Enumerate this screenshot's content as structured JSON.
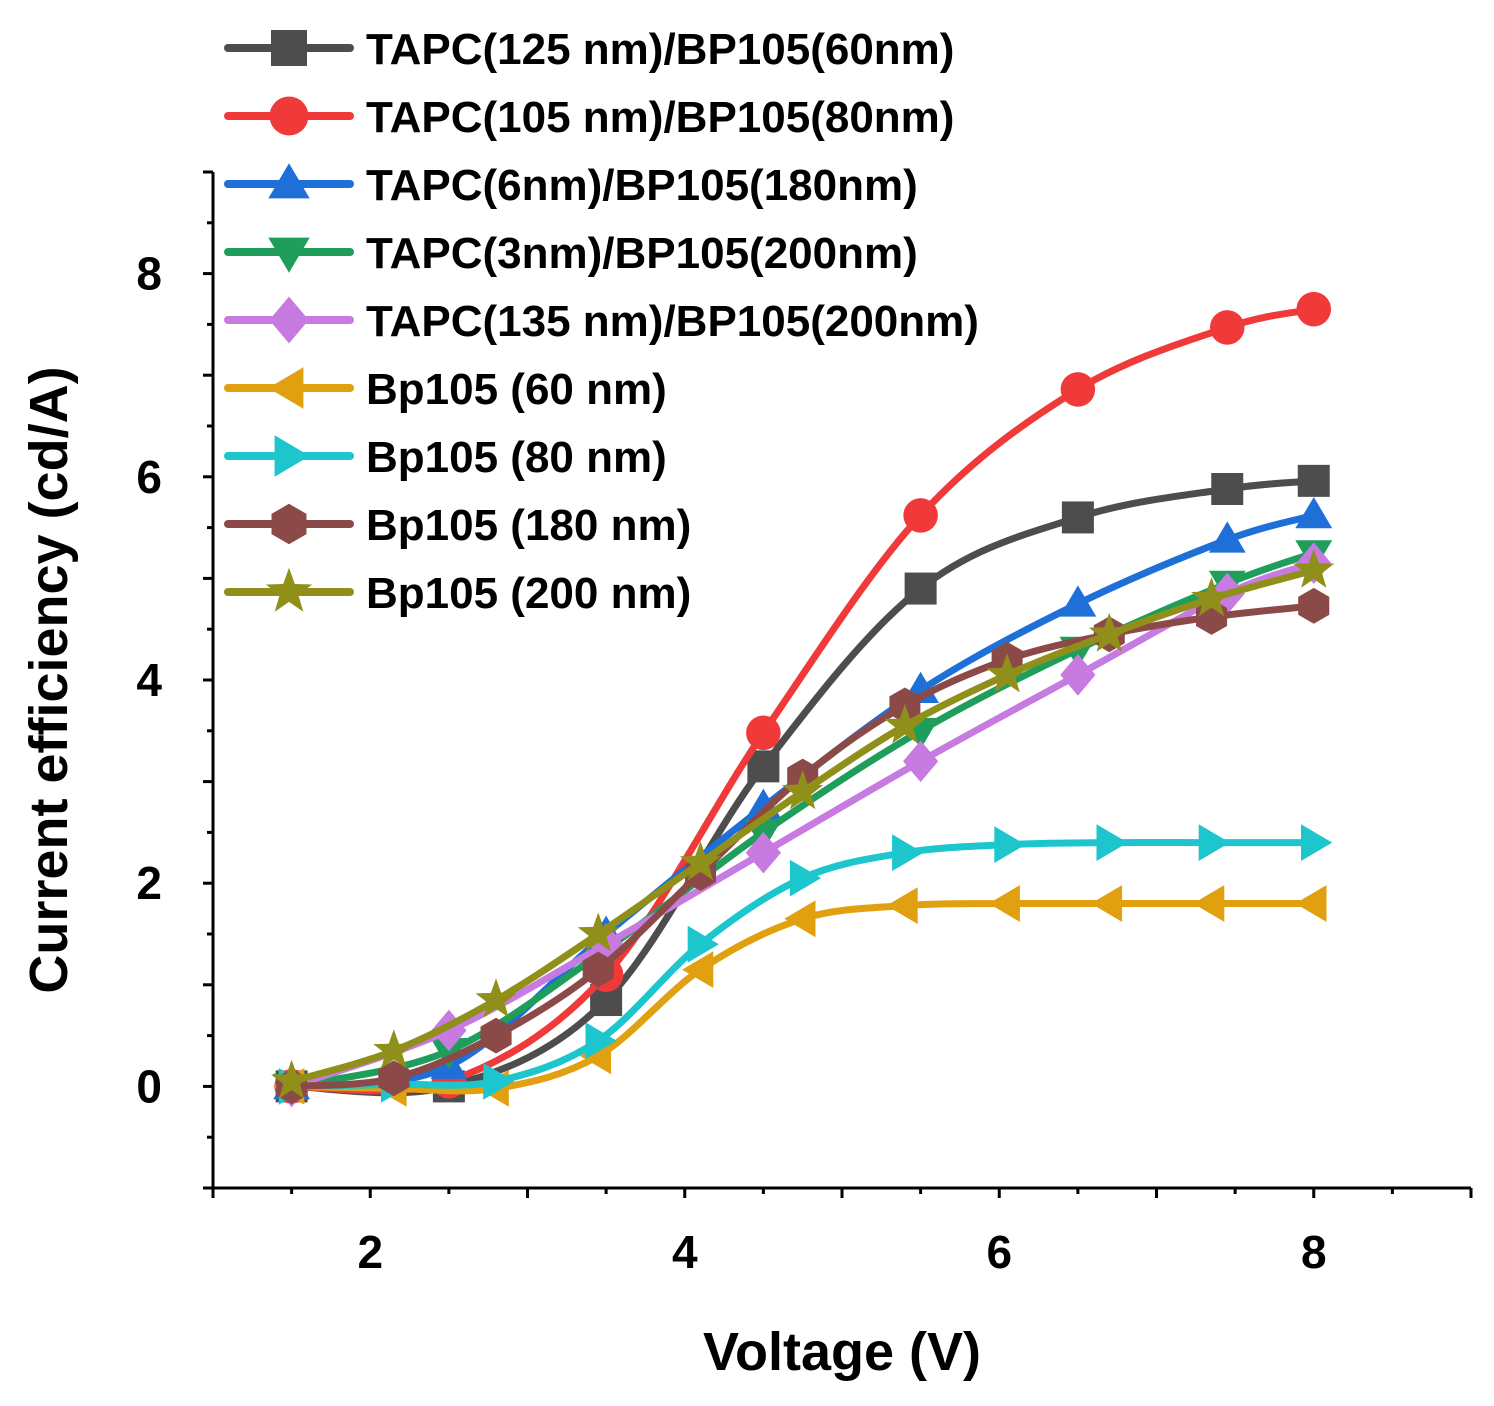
{
  "chart_data": {
    "type": "line",
    "title": "",
    "xlabel": "Voltage (V)",
    "ylabel": "Current efficiency (cd/A)",
    "xlim": [
      1,
      9
    ],
    "ylim": [
      -1,
      9
    ],
    "xticks": [
      2,
      4,
      6,
      8
    ],
    "yticks": [
      0,
      2,
      4,
      6,
      8
    ],
    "legend_position": "top-left",
    "series": [
      {
        "name": "TAPC(125 nm)/BP105(60nm)",
        "color": "#4d4d4d",
        "marker": "square",
        "x": [
          1.5,
          2.5,
          3.5,
          4.5,
          5.5,
          6.5,
          7.45,
          8.0
        ],
        "y": [
          0.0,
          0.0,
          0.85,
          3.15,
          4.9,
          5.6,
          5.88,
          5.96
        ]
      },
      {
        "name": "TAPC(105 nm)/BP105(80nm)",
        "color": "#f03a3a",
        "marker": "circle",
        "x": [
          1.5,
          2.5,
          3.5,
          4.5,
          5.5,
          6.5,
          7.45,
          8.0
        ],
        "y": [
          0.0,
          0.05,
          1.1,
          3.48,
          5.62,
          6.86,
          7.47,
          7.65
        ]
      },
      {
        "name": "TAPC(6nm)/BP105(180nm)",
        "color": "#1f6fd8",
        "marker": "triangle-up",
        "x": [
          1.5,
          2.5,
          3.5,
          4.5,
          5.5,
          6.5,
          7.45,
          8.0
        ],
        "y": [
          0.0,
          0.2,
          1.5,
          2.75,
          3.9,
          4.75,
          5.38,
          5.62
        ]
      },
      {
        "name": "TAPC(3nm)/BP105(200nm)",
        "color": "#1e9e5a",
        "marker": "triangle-down",
        "x": [
          1.5,
          2.5,
          3.5,
          4.5,
          5.5,
          6.5,
          7.45,
          8.0
        ],
        "y": [
          0.0,
          0.35,
          1.35,
          2.5,
          3.5,
          4.3,
          4.95,
          5.25
        ]
      },
      {
        "name": "TAPC(135 nm)/BP105(200nm)",
        "color": "#c77be0",
        "marker": "diamond",
        "x": [
          1.5,
          2.5,
          3.5,
          4.5,
          5.5,
          6.5,
          7.45,
          8.0
        ],
        "y": [
          0.0,
          0.55,
          1.4,
          2.3,
          3.2,
          4.05,
          4.85,
          5.15
        ]
      },
      {
        "name": "Bp105 (60 nm)",
        "color": "#e0a010",
        "marker": "triangle-left",
        "x": [
          1.5,
          2.15,
          2.8,
          3.45,
          4.1,
          4.75,
          5.4,
          6.05,
          6.7,
          7.35,
          8.0
        ],
        "y": [
          0.0,
          -0.02,
          -0.02,
          0.3,
          1.15,
          1.65,
          1.78,
          1.8,
          1.8,
          1.8,
          1.8
        ]
      },
      {
        "name": "Bp105 (80 nm)",
        "color": "#1cc6cc",
        "marker": "triangle-right",
        "x": [
          1.5,
          2.15,
          2.8,
          3.45,
          4.1,
          4.75,
          5.4,
          6.05,
          6.7,
          7.35,
          8.0
        ],
        "y": [
          0.0,
          0.02,
          0.05,
          0.45,
          1.4,
          2.05,
          2.3,
          2.38,
          2.4,
          2.4,
          2.4
        ]
      },
      {
        "name": "Bp105 (180 nm)",
        "color": "#8b4a48",
        "marker": "hexagon",
        "x": [
          1.5,
          2.15,
          2.8,
          3.45,
          4.1,
          4.75,
          5.4,
          6.05,
          6.7,
          7.35,
          8.0
        ],
        "y": [
          0.0,
          0.08,
          0.5,
          1.15,
          2.1,
          3.05,
          3.75,
          4.2,
          4.45,
          4.62,
          4.73
        ]
      },
      {
        "name": "Bp105 (200 nm)",
        "color": "#8f8f1a",
        "marker": "star",
        "x": [
          1.5,
          2.15,
          2.8,
          3.45,
          4.1,
          4.75,
          5.4,
          6.05,
          6.7,
          7.35,
          8.0
        ],
        "y": [
          0.05,
          0.35,
          0.85,
          1.5,
          2.2,
          2.9,
          3.55,
          4.05,
          4.45,
          4.8,
          5.08
        ]
      }
    ]
  }
}
